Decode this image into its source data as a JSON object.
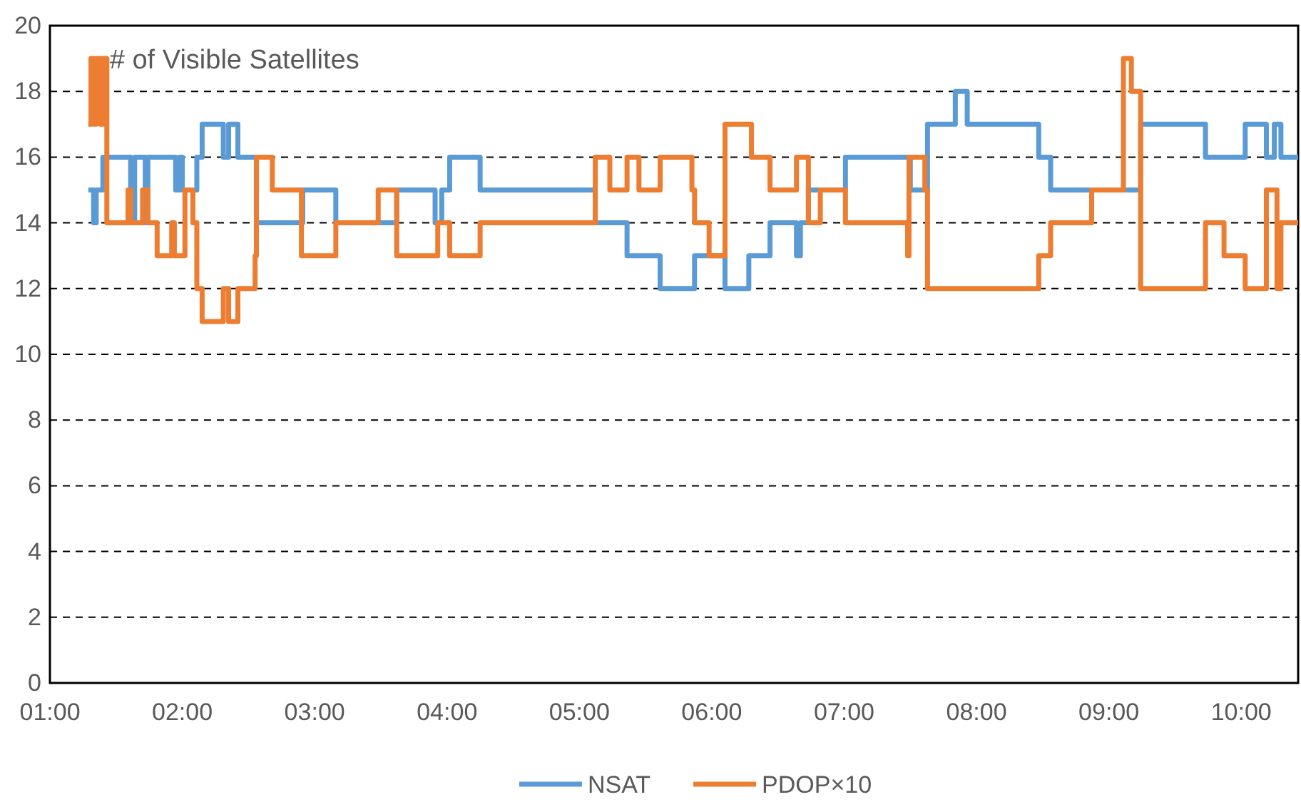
{
  "chart_data": {
    "type": "step",
    "title": "# of Visible Satellites",
    "xlim": [
      1,
      10.43
    ],
    "xticks": [
      {
        "value": 1,
        "label": "01:00"
      },
      {
        "value": 2,
        "label": "02:00"
      },
      {
        "value": 3,
        "label": "03:00"
      },
      {
        "value": 4,
        "label": "04:00"
      },
      {
        "value": 5,
        "label": "05:00"
      },
      {
        "value": 6,
        "label": "06:00"
      },
      {
        "value": 7,
        "label": "07:00"
      },
      {
        "value": 8,
        "label": "08:00"
      },
      {
        "value": 9,
        "label": "09:00"
      },
      {
        "value": 10,
        "label": "10:00"
      }
    ],
    "ylim": [
      0,
      20
    ],
    "yticks": [
      0,
      2,
      4,
      6,
      8,
      10,
      12,
      14,
      16,
      18,
      20
    ],
    "grid": "y",
    "legend": "bottom",
    "line_style": "solid",
    "marker": "none",
    "series": [
      {
        "name": "NSAT",
        "color": "#5b9bd5",
        "x": [
          1.29,
          1.33,
          1.35,
          1.4,
          1.61,
          1.64,
          1.72,
          1.74,
          1.95,
          1.98,
          2.0,
          2.11,
          2.15,
          2.31,
          2.35,
          2.42,
          2.56,
          2.91,
          3.16,
          3.62,
          3.91,
          3.96,
          4.02,
          4.25,
          5.12,
          5.36,
          5.61,
          5.87,
          6.1,
          6.28,
          6.44,
          6.64,
          6.67,
          6.73,
          7.01,
          7.5,
          7.63,
          7.84,
          7.93,
          8.47,
          8.56,
          9.24,
          9.73,
          10.03,
          10.19,
          10.25,
          10.3,
          10.43
        ],
        "values": [
          15,
          14,
          15,
          16,
          14,
          16,
          14,
          16,
          15,
          16,
          15,
          16,
          17,
          16,
          17,
          16,
          14,
          15,
          14,
          15,
          14,
          15,
          16,
          15,
          14,
          13,
          12,
          13,
          12,
          13,
          14,
          13,
          14,
          15,
          16,
          15,
          17,
          18,
          17,
          16,
          15,
          17,
          16,
          17,
          16,
          17,
          16,
          16
        ]
      },
      {
        "name": "PDOP×10",
        "color": "#ed7d31",
        "x": [
          1.29,
          1.31,
          1.33,
          1.35,
          1.38,
          1.4,
          1.43,
          1.59,
          1.61,
          1.7,
          1.74,
          1.81,
          1.92,
          1.94,
          2.02,
          2.08,
          2.11,
          2.15,
          2.31,
          2.35,
          2.42,
          2.55,
          2.56,
          2.68,
          2.9,
          3.16,
          3.48,
          3.62,
          3.93,
          4.02,
          4.25,
          5.12,
          5.23,
          5.36,
          5.45,
          5.61,
          5.85,
          5.87,
          5.98,
          6.1,
          6.3,
          6.44,
          6.64,
          6.73,
          6.82,
          7.01,
          7.48,
          7.49,
          7.61,
          7.63,
          8.47,
          8.56,
          8.87,
          9.11,
          9.17,
          9.24,
          9.73,
          9.87,
          10.03,
          10.19,
          10.27,
          10.3,
          10.43
        ],
        "values": [
          17,
          19,
          17,
          19,
          17,
          19,
          14,
          15,
          14,
          15,
          14,
          13,
          14,
          13,
          15,
          14,
          12,
          11,
          12,
          11,
          12,
          13,
          16,
          15,
          13,
          14,
          15,
          13,
          14,
          13,
          14,
          16,
          15,
          16,
          15,
          16,
          15,
          14,
          13,
          17,
          16,
          15,
          16,
          14,
          15,
          14,
          13,
          16,
          15,
          12,
          13,
          14,
          15,
          19,
          18,
          12,
          14,
          13,
          12,
          15,
          12,
          14,
          14
        ]
      }
    ]
  }
}
